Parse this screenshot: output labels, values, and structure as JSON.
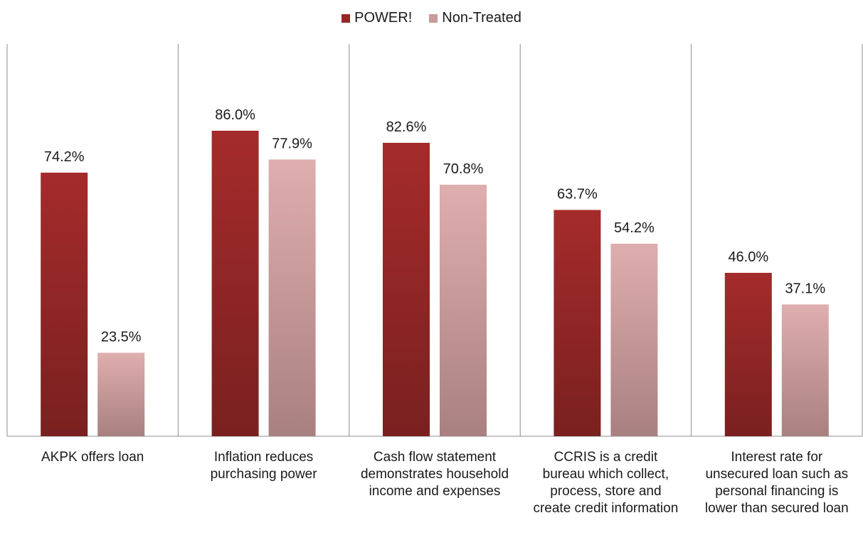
{
  "chart_data": {
    "type": "bar",
    "categories": [
      [
        "AKPK offers loan"
      ],
      [
        "Inflation reduces",
        "purchasing power"
      ],
      [
        "Cash flow statement",
        "demonstrates household",
        "income and expenses"
      ],
      [
        "CCRIS is a credit",
        "bureau which collect,",
        "process, store and",
        "create credit information"
      ],
      [
        "Interest rate for",
        "unsecured loan such as",
        "personal financing is",
        "lower than secured loan"
      ]
    ],
    "series": [
      {
        "name": "POWER!",
        "values": [
          74.2,
          86.0,
          82.6,
          63.7,
          46.0
        ],
        "labels": [
          "74.2%",
          "86.0%",
          "82.6%",
          "63.7%",
          "46.0%"
        ],
        "color_top": "#a52b2b",
        "color_bottom": "#7a2020"
      },
      {
        "name": "Non-Treated",
        "values": [
          23.5,
          77.9,
          70.8,
          54.2,
          37.1
        ],
        "labels": [
          "23.5%",
          "77.9%",
          "70.8%",
          "54.2%",
          "37.1%"
        ],
        "color_top": "#dfaeae",
        "color_bottom": "#a98080"
      }
    ],
    "ylim": [
      0,
      100
    ],
    "legend_position": "top-center",
    "grid": false
  }
}
